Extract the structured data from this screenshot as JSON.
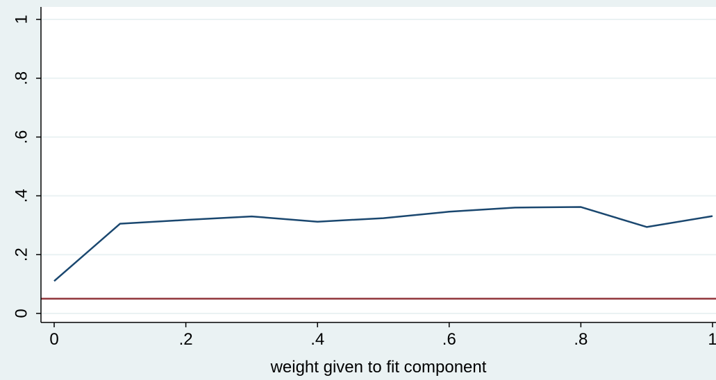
{
  "chart_data": {
    "type": "line",
    "title": "",
    "xlabel": "weight given to fit component",
    "ylabel": "",
    "xlim": [
      0,
      1
    ],
    "ylim": [
      0,
      1
    ],
    "x_ticks": [
      {
        "value": 0,
        "label": "0"
      },
      {
        "value": 0.2,
        "label": ".2"
      },
      {
        "value": 0.4,
        "label": ".4"
      },
      {
        "value": 0.6,
        "label": ".6"
      },
      {
        "value": 0.8,
        "label": ".8"
      },
      {
        "value": 1,
        "label": "1"
      }
    ],
    "y_ticks": [
      {
        "value": 0,
        "label": "0"
      },
      {
        "value": 0.2,
        "label": ".2"
      },
      {
        "value": 0.4,
        "label": ".4"
      },
      {
        "value": 0.6,
        "label": ".6"
      },
      {
        "value": 0.8,
        "label": ".8"
      },
      {
        "value": 1,
        "label": "1"
      }
    ],
    "grid": "horizontal",
    "series": [
      {
        "color": "#1a476f",
        "x": [
          0,
          0.1,
          0.2,
          0.3,
          0.4,
          0.5,
          0.6,
          0.7,
          0.8,
          0.9,
          1.0
        ],
        "y": [
          0.11,
          0.305,
          0.318,
          0.33,
          0.312,
          0.324,
          0.346,
          0.36,
          0.362,
          0.294,
          0.331
        ]
      }
    ],
    "reference_lines": [
      {
        "axis": "y",
        "value": 0.05,
        "color": "#90353b"
      }
    ]
  }
}
